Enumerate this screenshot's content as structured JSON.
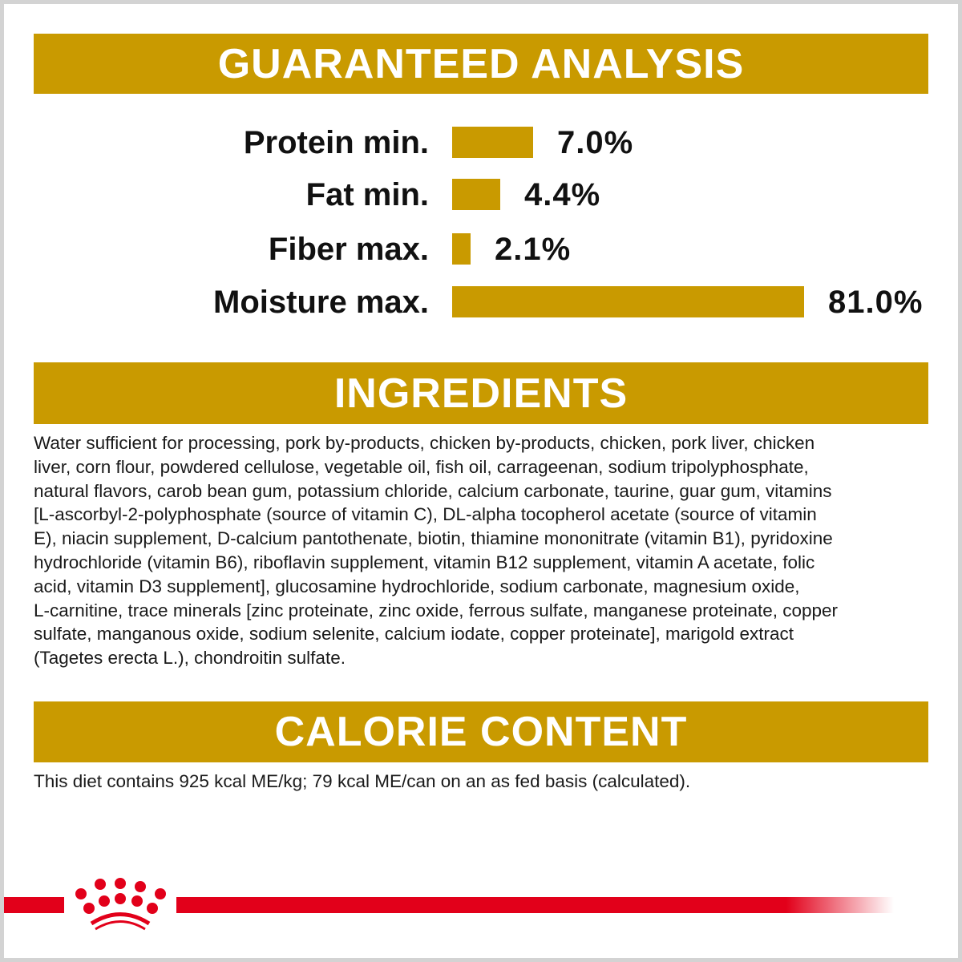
{
  "colors": {
    "accent": "#c99a00",
    "brand_red": "#e2001a"
  },
  "guaranteed_analysis": {
    "title": "GUARANTEED ANALYSIS",
    "rows": [
      {
        "label": "Protein min.",
        "value": 7.0,
        "display": "7.0%"
      },
      {
        "label": "Fat min.",
        "value": 4.4,
        "display": "4.4%"
      },
      {
        "label": "Fiber max.",
        "value": 2.1,
        "display": "2.1%"
      },
      {
        "label": "Moisture max.",
        "value": 81.0,
        "display": "81.0%"
      }
    ]
  },
  "ingredients": {
    "title": "INGREDIENTS",
    "lines": [
      "Water sufficient for processing, pork by-products, chicken by-products, chicken, pork liver, chicken",
      "liver, corn flour, powdered cellulose, vegetable oil, fish oil, carrageenan, sodium tripolyphosphate,",
      "natural flavors, carob bean gum, potassium chloride, calcium carbonate, taurine, guar gum, vitamins",
      "[L-ascorbyl-2-polyphosphate (source of vitamin C), DL-alpha tocopherol acetate (source of vitamin",
      "E), niacin supplement, D-calcium pantothenate, biotin, thiamine mononitrate (vitamin B1), pyridoxine",
      "hydrochloride (vitamin B6), riboflavin supplement, vitamin B12 supplement, vitamin A acetate, folic",
      "acid, vitamin D3 supplement], glucosamine hydrochloride, sodium carbonate, magnesium oxide,",
      "L-carnitine, trace minerals [zinc proteinate, zinc oxide, ferrous sulfate, manganese proteinate, copper",
      "sulfate, manganous oxide, sodium selenite, calcium iodate, copper proteinate], marigold extract",
      "(Tagetes erecta L.), chondroitin sulfate."
    ]
  },
  "calorie_content": {
    "title": "CALORIE CONTENT",
    "text": "This diet contains 925 kcal ME/kg; 79 kcal ME/can on an as fed basis (calculated)."
  },
  "logo": {
    "icon": "royal-canin-crown-icon"
  }
}
